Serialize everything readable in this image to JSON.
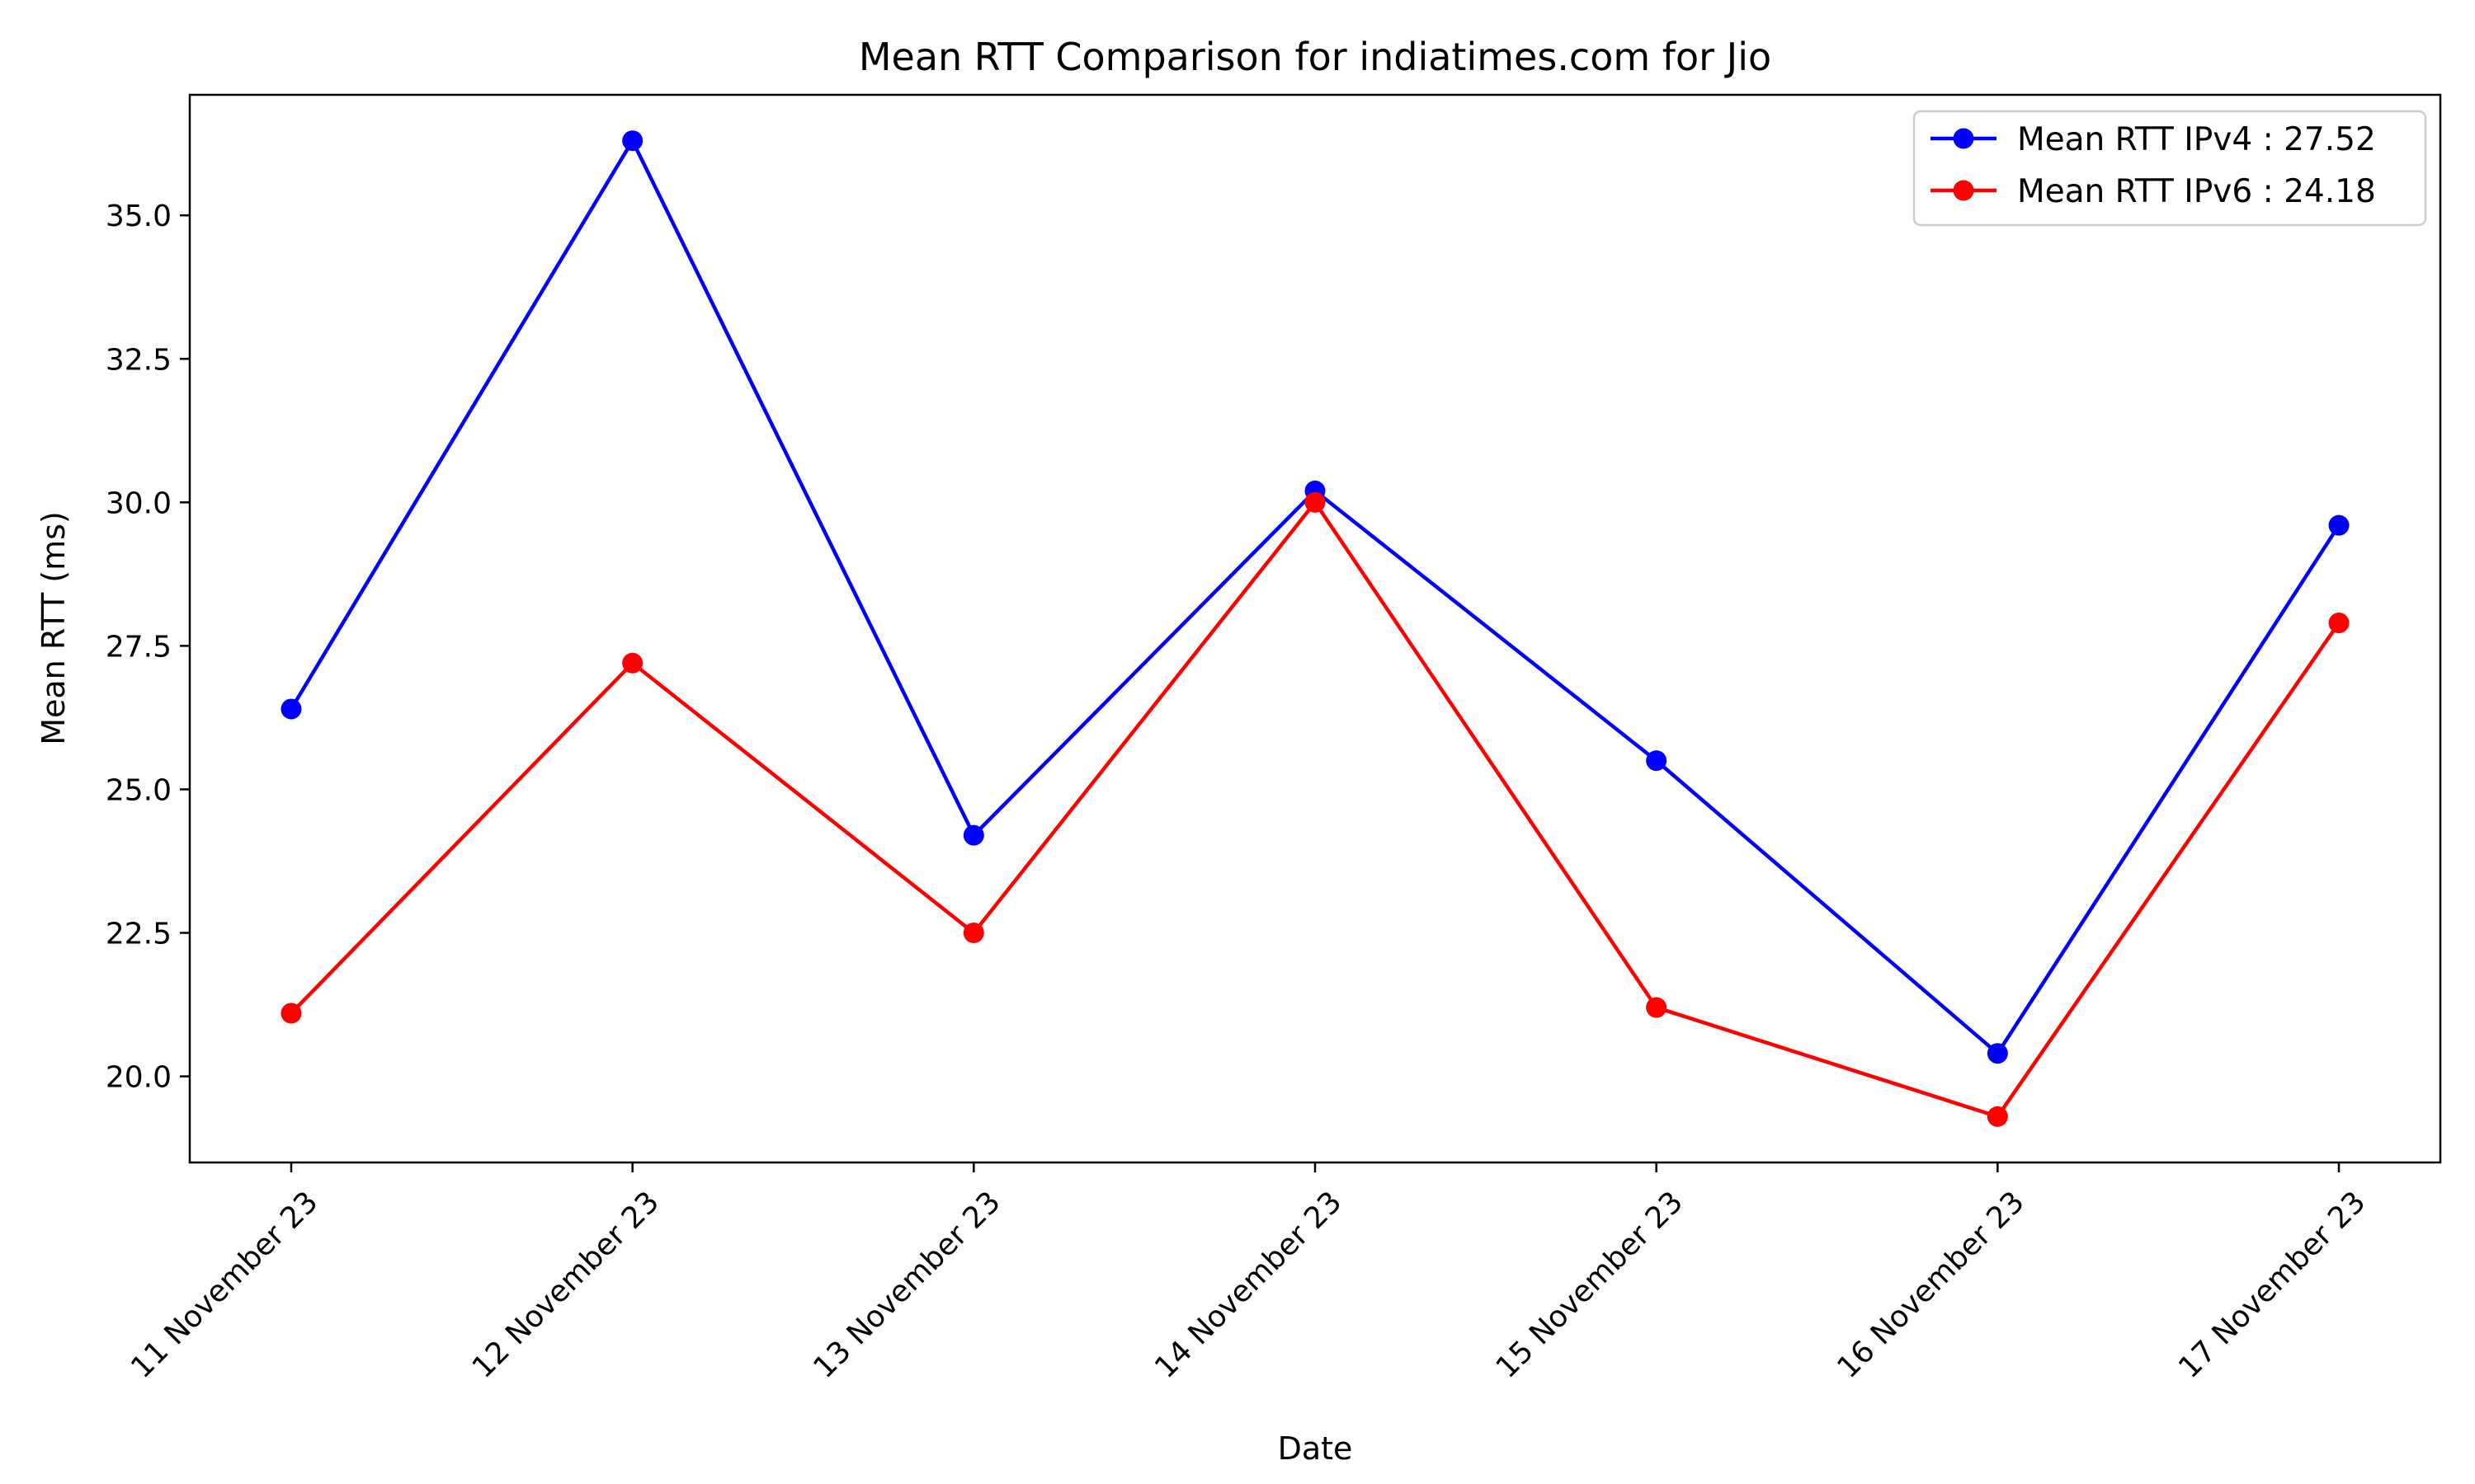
{
  "chart_data": {
    "type": "line",
    "title": "Mean RTT Comparison for indiatimes.com for Jio",
    "xlabel": "Date",
    "ylabel": "Mean RTT (ms)",
    "categories": [
      "11 November 23",
      "12 November 23",
      "13 November 23",
      "14 November 23",
      "15 November 23",
      "16 November 23",
      "17 November 23"
    ],
    "ylim": [
      18.5,
      37.1
    ],
    "yticks": [
      "20.0",
      "22.5",
      "25.0",
      "27.5",
      "30.0",
      "32.5",
      "35.0"
    ],
    "grid": false,
    "legend_position": "top-right",
    "series": [
      {
        "name": "Mean RTT IPv4 : 27.52",
        "color": "#0000ff",
        "values": [
          26.4,
          36.3,
          24.2,
          30.2,
          25.5,
          20.4,
          29.6
        ]
      },
      {
        "name": "Mean RTT IPv6 : 24.18",
        "color": "#ff0000",
        "values": [
          21.1,
          27.2,
          22.5,
          30.0,
          21.2,
          19.3,
          27.9
        ]
      }
    ]
  }
}
